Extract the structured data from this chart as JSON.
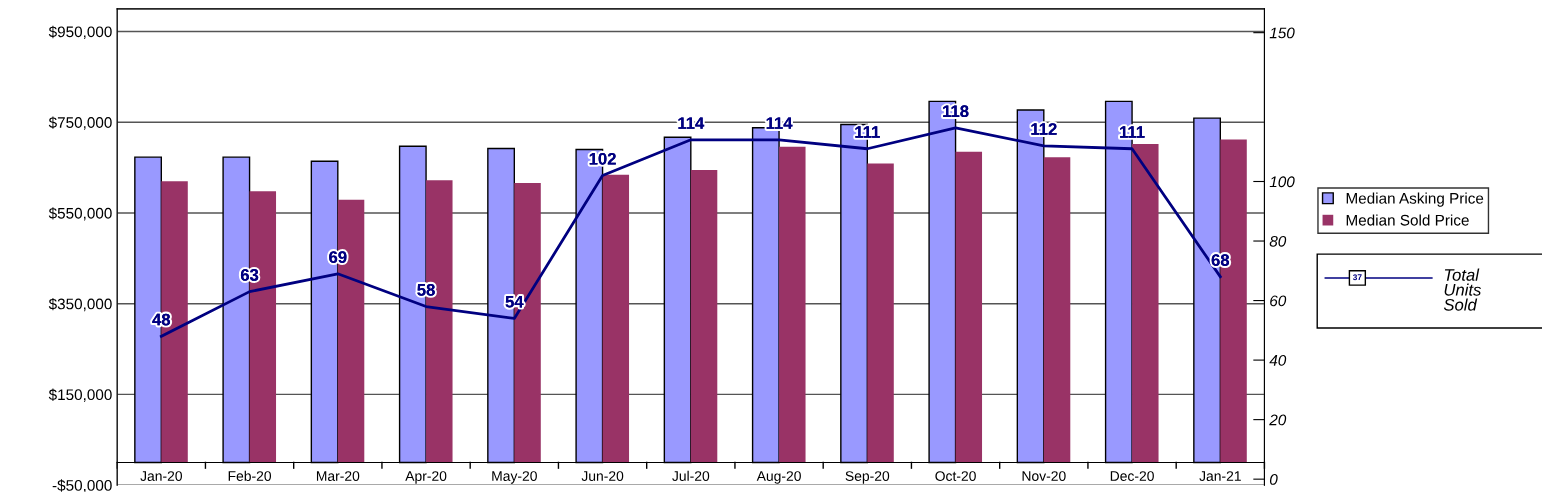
{
  "chart_data": {
    "type": "bar",
    "categories": [
      "Jan-20",
      "Feb-20",
      "Mar-20",
      "Apr-20",
      "May-20",
      "Jun-20",
      "Jul-20",
      "Aug-20",
      "Sep-20",
      "Oct-20",
      "Nov-20",
      "Dec-20",
      "Jan-21"
    ],
    "series": [
      {
        "name": "Median Asking Price",
        "color": "#9999ff",
        "values": [
          673000,
          673000,
          664000,
          697000,
          692000,
          690000,
          717000,
          738000,
          745000,
          796000,
          777000,
          796000,
          759000
        ]
      },
      {
        "name": "Median Sold Price",
        "color": "#993366",
        "values": [
          620000,
          598000,
          579000,
          622000,
          616000,
          634000,
          645000,
          696000,
          659000,
          685000,
          673000,
          702000,
          712000
        ]
      },
      {
        "name": "Total Units Sold",
        "type": "line",
        "axis": "y2",
        "color": "#000080",
        "marker": "none",
        "values": [
          48,
          63,
          69,
          58,
          54,
          102,
          114,
          114,
          111,
          118,
          112,
          111,
          68
        ],
        "value_labels": [
          "48",
          "63",
          "69",
          "58",
          "54",
          "102",
          "114",
          "114",
          "111",
          "118",
          "112",
          "111",
          "68"
        ]
      }
    ],
    "ylim": [
      -50000,
      1000000
    ],
    "yticks": [
      {
        "value": -50000,
        "label": "-$50,000"
      },
      {
        "value": 150000,
        "label": "$150,000"
      },
      {
        "value": 350000,
        "label": "$350,000"
      },
      {
        "value": 550000,
        "label": "$550,000"
      },
      {
        "value": 750000,
        "label": "$750,000"
      },
      {
        "value": 950000,
        "label": "$950,000"
      }
    ],
    "y2lim": [
      -2,
      158
    ],
    "y2ticks": [
      0,
      20,
      40,
      60,
      80,
      100,
      150
    ],
    "grid": "y",
    "legend": "right",
    "annotations": [
      "37"
    ]
  }
}
